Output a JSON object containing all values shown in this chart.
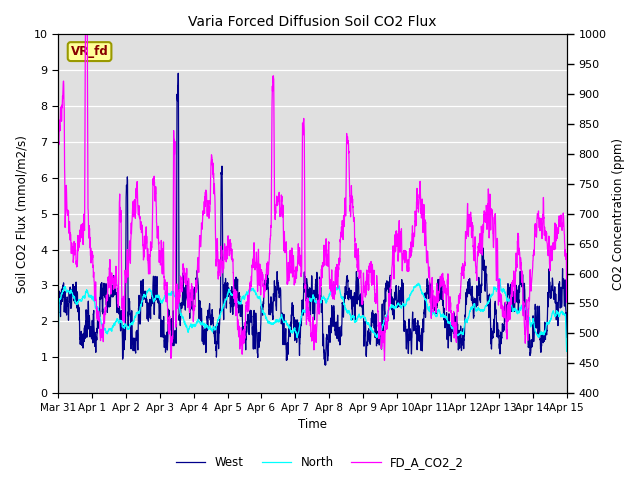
{
  "title": "Varia Forced Diffusion Soil CO2 Flux",
  "xlabel": "Time",
  "ylabel_left": "Soil CO2 Flux (mmol/m2/s)",
  "ylabel_right": "CO2 Concentration (ppm)",
  "ylim_left": [
    0.0,
    10.0
  ],
  "ylim_right": [
    400,
    1000
  ],
  "yticks_left": [
    0.0,
    1.0,
    2.0,
    3.0,
    4.0,
    5.0,
    6.0,
    7.0,
    8.0,
    9.0,
    10.0
  ],
  "yticks_right": [
    400,
    450,
    500,
    550,
    600,
    650,
    700,
    750,
    800,
    850,
    900,
    950,
    1000
  ],
  "bg_color": "#e0e0e0",
  "west_color": "#00008B",
  "north_color": "#00FFFF",
  "co2_color": "#FF00FF",
  "legend_labels": [
    "West",
    "North",
    "FD_A_CO2_2"
  ],
  "vr_fd_label": "VR_fd",
  "vr_fd_bg": "#FFFF99",
  "vr_fd_border": "#999900",
  "vr_fd_text_color": "#880000",
  "n_points": 3000,
  "seed": 42,
  "figwidth": 6.4,
  "figheight": 4.8,
  "dpi": 100
}
